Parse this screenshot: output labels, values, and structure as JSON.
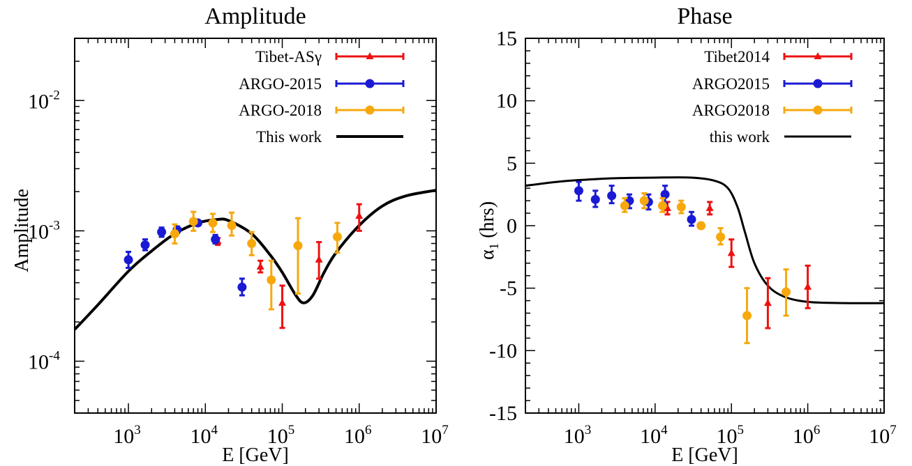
{
  "colors": {
    "tibet": "#ee1111",
    "argo2015": "#1a1ad4",
    "argo2018": "#f7a80d",
    "model": "#000000"
  },
  "chart_data": [
    {
      "type": "scatter",
      "title": "Amplitude",
      "xlabel": "E [GeV]",
      "ylabel": "Amplitude",
      "xscale": "log",
      "yscale": "log",
      "xlim": [
        200,
        10000000
      ],
      "ylim": [
        4e-05,
        0.03
      ],
      "xticks": [
        {
          "base": "10",
          "exp": "3",
          "value": 1000
        },
        {
          "base": "10",
          "exp": "4",
          "value": 10000
        },
        {
          "base": "10",
          "exp": "5",
          "value": 100000
        },
        {
          "base": "10",
          "exp": "6",
          "value": 1000000
        },
        {
          "base": "10",
          "exp": "7",
          "value": 10000000
        }
      ],
      "yticks": [
        {
          "base": "10",
          "exp": "-4",
          "value": 0.0001
        },
        {
          "base": "10",
          "exp": "-3",
          "value": 0.001
        },
        {
          "base": "10",
          "exp": "-2",
          "value": 0.01
        }
      ],
      "legend_position": "top-right",
      "series": [
        {
          "name": "Tibet-ASγ",
          "color_key": "tibet",
          "marker": "triangle",
          "points": [
            {
              "x": 14500,
              "y": 0.00083,
              "lo": 0.00078,
              "hi": 0.00088
            },
            {
              "x": 52000,
              "y": 0.00053,
              "lo": 0.00048,
              "hi": 0.00059
            },
            {
              "x": 100000,
              "y": 0.00028,
              "lo": 0.00018,
              "hi": 0.00038
            },
            {
              "x": 300000,
              "y": 0.0006,
              "lo": 0.00043,
              "hi": 0.00082
            },
            {
              "x": 1000000,
              "y": 0.0013,
              "lo": 0.001,
              "hi": 0.0016
            }
          ]
        },
        {
          "name": "ARGO-2015",
          "color_key": "argo2015",
          "marker": "circle",
          "points": [
            {
              "x": 1000,
              "y": 0.0006,
              "lo": 0.00052,
              "hi": 0.00069
            },
            {
              "x": 1650,
              "y": 0.00078,
              "lo": 0.00071,
              "hi": 0.00086
            },
            {
              "x": 2700,
              "y": 0.00098,
              "lo": 0.0009,
              "hi": 0.00106
            },
            {
              "x": 4300,
              "y": 0.00102,
              "lo": 0.00096,
              "hi": 0.00108
            },
            {
              "x": 8000,
              "y": 0.00115,
              "lo": 0.0011,
              "hi": 0.0012
            },
            {
              "x": 13500,
              "y": 0.00086,
              "lo": 0.0008,
              "hi": 0.00093
            },
            {
              "x": 30000,
              "y": 0.00037,
              "lo": 0.00032,
              "hi": 0.00043
            }
          ]
        },
        {
          "name": "ARGO-2018",
          "color_key": "argo2018",
          "marker": "circle",
          "points": [
            {
              "x": 4000,
              "y": 0.00095,
              "lo": 0.0008,
              "hi": 0.00112
            },
            {
              "x": 7000,
              "y": 0.00118,
              "lo": 0.001,
              "hi": 0.0014
            },
            {
              "x": 12500,
              "y": 0.00115,
              "lo": 0.00098,
              "hi": 0.00135
            },
            {
              "x": 22000,
              "y": 0.0011,
              "lo": 0.00092,
              "hi": 0.00138
            },
            {
              "x": 40000,
              "y": 0.0008,
              "lo": 0.00065,
              "hi": 0.00098
            },
            {
              "x": 72000,
              "y": 0.00042,
              "lo": 0.00025,
              "hi": 0.00059
            },
            {
              "x": 160000,
              "y": 0.00077,
              "lo": 0.00033,
              "hi": 0.00125
            },
            {
              "x": 520000,
              "y": 0.0009,
              "lo": 0.00068,
              "hi": 0.00115
            }
          ]
        }
      ],
      "model": {
        "name": "This work",
        "color_key": "model",
        "points": [
          {
            "x": 200,
            "y": 0.000175
          },
          {
            "x": 400,
            "y": 0.00027
          },
          {
            "x": 1000,
            "y": 0.00049
          },
          {
            "x": 2000,
            "y": 0.0007
          },
          {
            "x": 4000,
            "y": 0.00095
          },
          {
            "x": 8000,
            "y": 0.00115
          },
          {
            "x": 14000,
            "y": 0.00122
          },
          {
            "x": 20000,
            "y": 0.0012
          },
          {
            "x": 40000,
            "y": 0.00095
          },
          {
            "x": 70000,
            "y": 0.00065
          },
          {
            "x": 100000,
            "y": 0.00048
          },
          {
            "x": 150000,
            "y": 0.00032
          },
          {
            "x": 190000,
            "y": 0.00028
          },
          {
            "x": 250000,
            "y": 0.00032
          },
          {
            "x": 350000,
            "y": 0.00048
          },
          {
            "x": 500000,
            "y": 0.00068
          },
          {
            "x": 1000000,
            "y": 0.0011
          },
          {
            "x": 2000000,
            "y": 0.00155
          },
          {
            "x": 4000000,
            "y": 0.00185
          },
          {
            "x": 10000000,
            "y": 0.00205
          }
        ]
      }
    },
    {
      "type": "scatter",
      "title": "Phase",
      "xlabel": "E [GeV]",
      "ylabel_main": "α",
      "ylabel_sub": "1",
      "ylabel_unit": " (hrs)",
      "xscale": "log",
      "yscale": "linear",
      "xlim": [
        200,
        10000000
      ],
      "ylim": [
        -15,
        15
      ],
      "xticks": [
        {
          "base": "10",
          "exp": "3",
          "value": 1000
        },
        {
          "base": "10",
          "exp": "4",
          "value": 10000
        },
        {
          "base": "10",
          "exp": "5",
          "value": 100000
        },
        {
          "base": "10",
          "exp": "6",
          "value": 1000000
        },
        {
          "base": "10",
          "exp": "7",
          "value": 10000000
        }
      ],
      "yticks": [
        {
          "label": "15",
          "value": 15
        },
        {
          "label": "10",
          "value": 10
        },
        {
          "label": "5",
          "value": 5
        },
        {
          "label": "0",
          "value": 0
        },
        {
          "label": "-5",
          "value": -5
        },
        {
          "label": "-10",
          "value": -10
        },
        {
          "label": "-15",
          "value": -15
        }
      ],
      "legend_position": "top-right",
      "series": [
        {
          "name": "Tibet2014",
          "color_key": "tibet",
          "marker": "triangle",
          "points": [
            {
              "x": 14500,
              "y": 1.4,
              "lo": 0.9,
              "hi": 1.9
            },
            {
              "x": 52000,
              "y": 1.4,
              "lo": 0.9,
              "hi": 1.9
            },
            {
              "x": 100000,
              "y": -2.2,
              "lo": -3.3,
              "hi": -1.1
            },
            {
              "x": 300000,
              "y": -6.2,
              "lo": -8.2,
              "hi": -4.2
            },
            {
              "x": 1000000,
              "y": -4.9,
              "lo": -6.6,
              "hi": -3.2
            }
          ]
        },
        {
          "name": "ARGO2015",
          "color_key": "argo2015",
          "marker": "circle",
          "points": [
            {
              "x": 1000,
              "y": 2.8,
              "lo": 2.0,
              "hi": 3.5
            },
            {
              "x": 1650,
              "y": 2.1,
              "lo": 1.5,
              "hi": 2.8
            },
            {
              "x": 2700,
              "y": 2.4,
              "lo": 1.8,
              "hi": 3.2
            },
            {
              "x": 4600,
              "y": 2.0,
              "lo": 1.4,
              "hi": 2.5
            },
            {
              "x": 8200,
              "y": 1.9,
              "lo": 1.3,
              "hi": 2.5
            },
            {
              "x": 13500,
              "y": 2.5,
              "lo": 1.8,
              "hi": 3.2
            },
            {
              "x": 30000,
              "y": 0.5,
              "lo": 0.0,
              "hi": 1.1
            }
          ]
        },
        {
          "name": "ARGO2018",
          "color_key": "argo2018",
          "marker": "circle",
          "points": [
            {
              "x": 4000,
              "y": 1.6,
              "lo": 1.1,
              "hi": 2.2
            },
            {
              "x": 7200,
              "y": 2.0,
              "lo": 1.4,
              "hi": 2.6
            },
            {
              "x": 12500,
              "y": 1.6,
              "lo": 1.1,
              "hi": 2.2
            },
            {
              "x": 22000,
              "y": 1.5,
              "lo": 1.0,
              "hi": 2.0
            },
            {
              "x": 40000,
              "y": 0.0,
              "lo": -0.2,
              "hi": 0.2
            },
            {
              "x": 72000,
              "y": -0.9,
              "lo": -1.5,
              "hi": -0.2
            },
            {
              "x": 160000,
              "y": -7.2,
              "lo": -9.4,
              "hi": -5.0
            },
            {
              "x": 520000,
              "y": -5.3,
              "lo": -7.2,
              "hi": -3.5
            }
          ]
        }
      ],
      "model": {
        "name": "this work",
        "color_key": "model",
        "points": [
          {
            "x": 200,
            "y": 3.2
          },
          {
            "x": 500,
            "y": 3.5
          },
          {
            "x": 1000,
            "y": 3.65
          },
          {
            "x": 3000,
            "y": 3.8
          },
          {
            "x": 10000,
            "y": 3.85
          },
          {
            "x": 30000,
            "y": 3.85
          },
          {
            "x": 60000,
            "y": 3.6
          },
          {
            "x": 90000,
            "y": 3.0
          },
          {
            "x": 120000,
            "y": 1.5
          },
          {
            "x": 150000,
            "y": -0.5
          },
          {
            "x": 200000,
            "y": -3.0
          },
          {
            "x": 300000,
            "y": -4.8
          },
          {
            "x": 500000,
            "y": -5.7
          },
          {
            "x": 1000000,
            "y": -6.1
          },
          {
            "x": 3000000,
            "y": -6.2
          },
          {
            "x": 10000000,
            "y": -6.2
          }
        ]
      }
    }
  ]
}
